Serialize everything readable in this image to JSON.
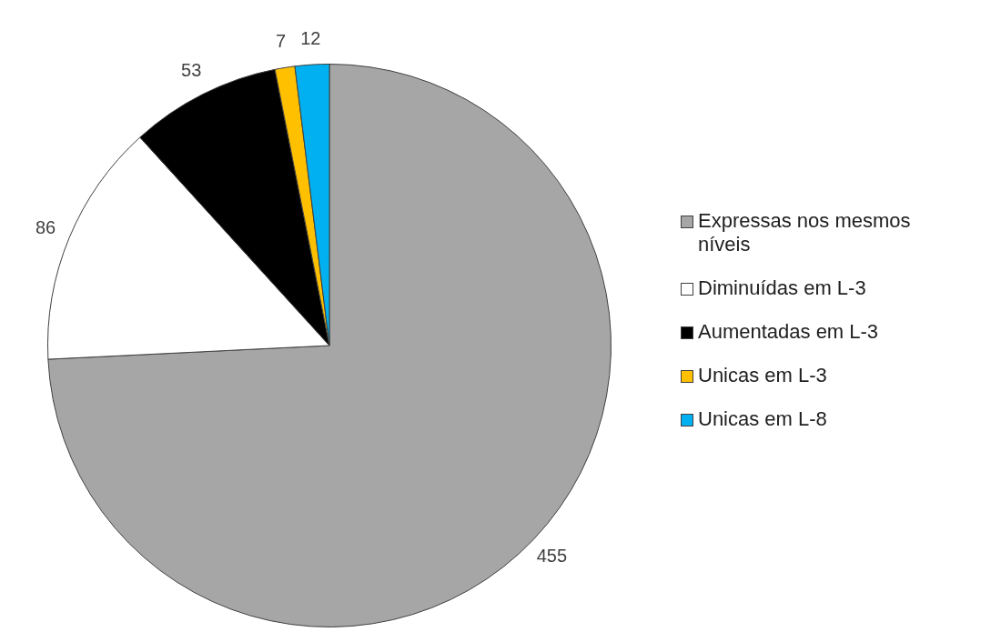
{
  "chart_data": {
    "type": "pie",
    "categories": [
      "Expressas nos mesmos níveis",
      "Diminuídas em L-3",
      "Aumentadas em L-3",
      "Unicas em L-3",
      "Unicas em L-8"
    ],
    "values": [
      455,
      86,
      53,
      7,
      12
    ],
    "colors": [
      "#a6a6a6",
      "#ffffff",
      "#000000",
      "#ffc000",
      "#00b0f0"
    ],
    "data_labels": true,
    "legend": "right"
  }
}
